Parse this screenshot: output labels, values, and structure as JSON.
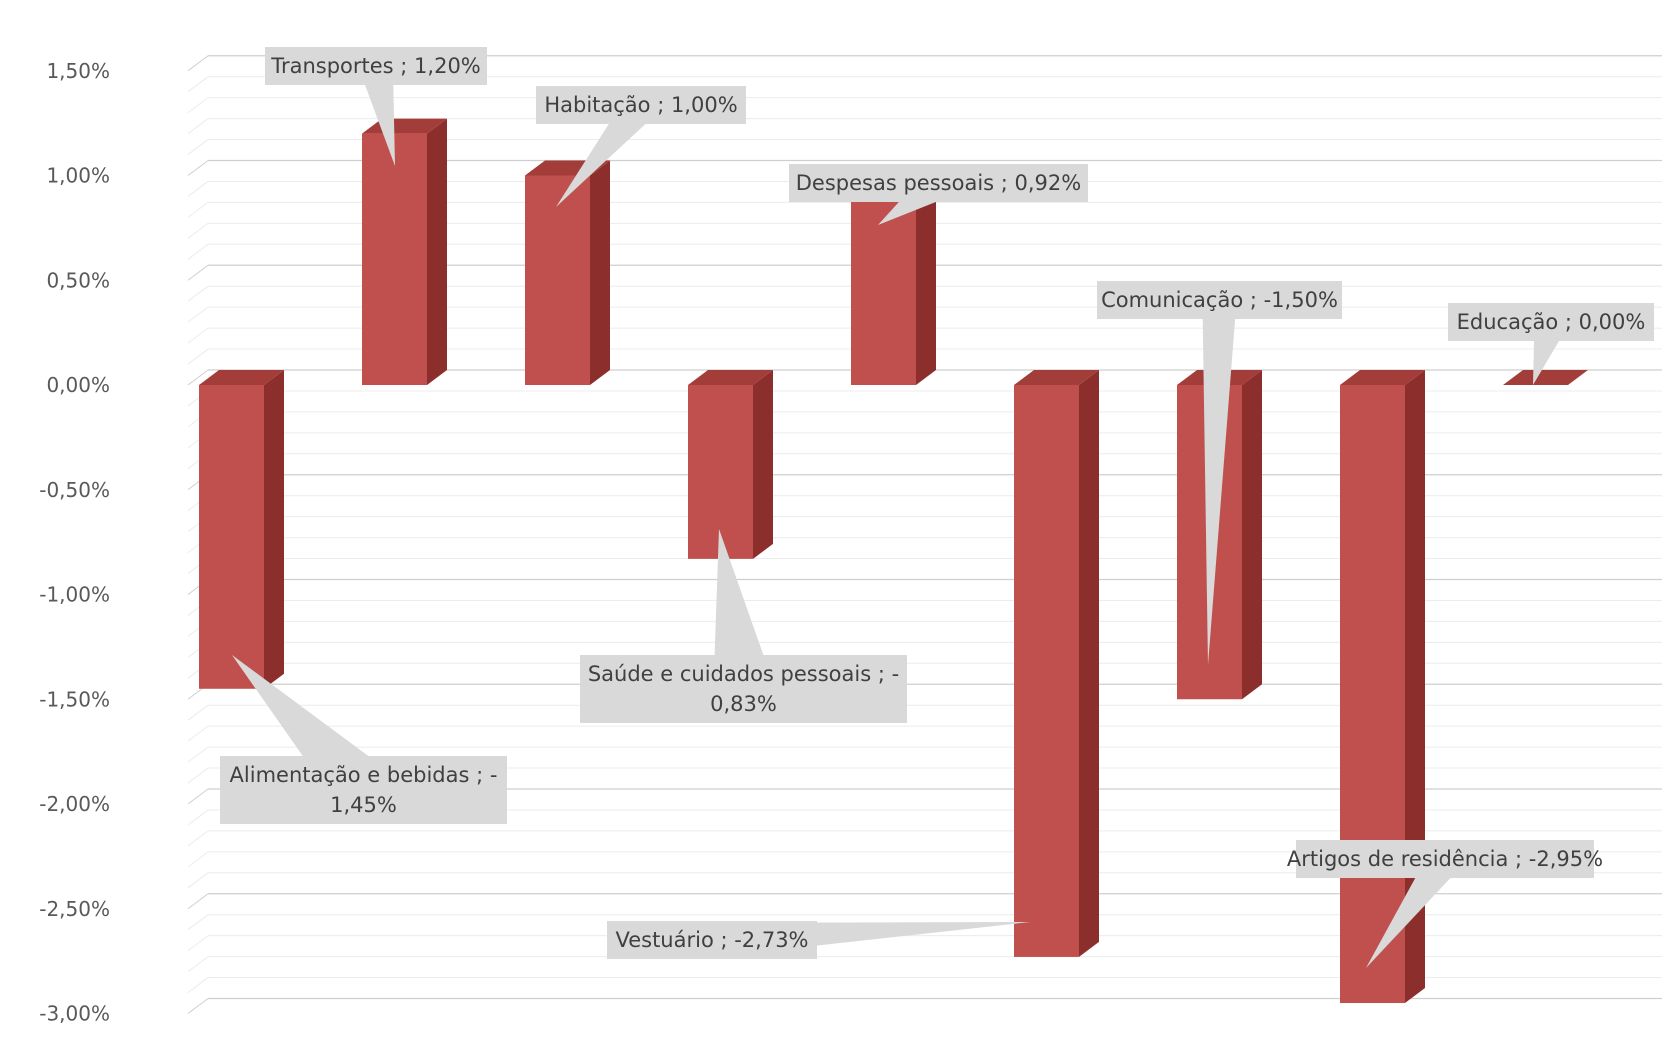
{
  "chart_data": {
    "type": "bar",
    "title": "",
    "xlabel": "",
    "ylabel": "",
    "categories": [
      "Alimentação e bebidas",
      "Transportes",
      "Habitação",
      "Saúde e cuidados pessoais",
      "Despesas pessoais",
      "Vestuário",
      "Comunicação",
      "Artigos de residência",
      "Educação"
    ],
    "values": [
      -1.45,
      1.2,
      1.0,
      -0.83,
      0.92,
      -2.73,
      -1.5,
      -2.95,
      0.0
    ],
    "data_labels": [
      [
        "Alimentação e bebidas ; -",
        "1,45%"
      ],
      [
        "Transportes ; 1,20%"
      ],
      [
        "Habitação ; 1,00%"
      ],
      [
        "Saúde e cuidados pessoais ; -",
        "0,83%"
      ],
      [
        "Despesas pessoais ; 0,92%"
      ],
      [
        "Vestuário ; -2,73%"
      ],
      [
        "Comunicação ; -1,50%"
      ],
      [
        "Artigos de residência ; -2,95%"
      ],
      [
        "Educação ; 0,00%"
      ]
    ],
    "y_ticks": [
      "1,50%",
      "1,00%",
      "0,50%",
      "0,00%",
      "-0,50%",
      "-1,00%",
      "-1,50%",
      "-2,00%",
      "-2,50%",
      "-3,00%"
    ],
    "ylim": [
      -3.0,
      1.5
    ],
    "grid": true,
    "legend": "none",
    "colors": {
      "bar_front": "#c0504d",
      "bar_side": "#8b2e2c",
      "bar_top": "#a33d3a",
      "gridline": "#d9d9d9",
      "callout": "#d9d9d9",
      "callout_text": "#404040",
      "tick_text": "#595959"
    }
  }
}
